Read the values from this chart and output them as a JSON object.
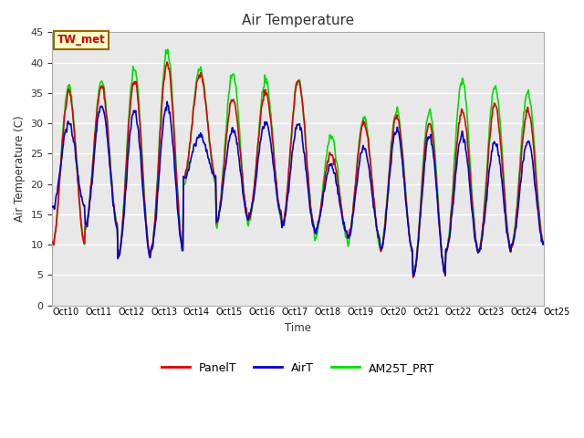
{
  "title": "Air Temperature",
  "ylabel": "Air Temperature (C)",
  "xlabel": "Time",
  "annotation": "TW_met",
  "annotation_color": "#cc0000",
  "annotation_bg": "#ffffcc",
  "annotation_border": "#996600",
  "ylim": [
    0,
    45
  ],
  "yticks": [
    0,
    5,
    10,
    15,
    20,
    25,
    30,
    35,
    40,
    45
  ],
  "xtick_labels": [
    "Oct 10",
    "Oct 11",
    "Oct 12",
    "Oct 13",
    "Oct 14",
    "Oct 15",
    "Oct 16",
    "Oct 17",
    "Oct 18",
    "Oct 19",
    "Oct 20",
    "Oct 21",
    "Oct 22",
    "Oct 23",
    "Oct 24",
    "Oct 25"
  ],
  "grid_color": "#ffffff",
  "bg_outer": "#ffffff",
  "bg_plot": "#e8e8e8",
  "line_colors": {
    "PanelT": "#dd0000",
    "AirT": "#0000cc",
    "AM25T_PRT": "#00dd00"
  },
  "line_widths": {
    "PanelT": 1.2,
    "AirT": 1.2,
    "AM25T_PRT": 1.2
  },
  "legend_entries": [
    "PanelT",
    "AirT",
    "AM25T_PRT"
  ],
  "n_days": 15,
  "samples_per_day": 48,
  "panel_peaks": [
    35,
    36,
    37,
    40,
    38,
    34,
    35,
    37,
    25,
    30,
    31,
    30,
    32,
    33,
    32
  ],
  "panel_lows": [
    10,
    13,
    8,
    9,
    21,
    14,
    15,
    13,
    12,
    11,
    9,
    5,
    9,
    9,
    10
  ],
  "air_peaks": [
    30,
    33,
    32,
    33,
    28,
    29,
    30,
    30,
    23,
    26,
    29,
    28,
    28,
    27,
    27
  ],
  "air_lows": [
    16,
    13,
    8,
    9,
    21,
    14,
    15,
    13,
    12,
    11,
    9,
    5,
    9,
    9,
    10
  ],
  "am25_peaks": [
    36,
    37,
    39,
    42,
    39,
    38,
    37,
    37,
    28,
    31,
    32,
    32,
    37,
    36,
    35
  ],
  "am25_lows": [
    10,
    13,
    8,
    9,
    20,
    13,
    14,
    13,
    11,
    10,
    9,
    5,
    9,
    9,
    10
  ]
}
